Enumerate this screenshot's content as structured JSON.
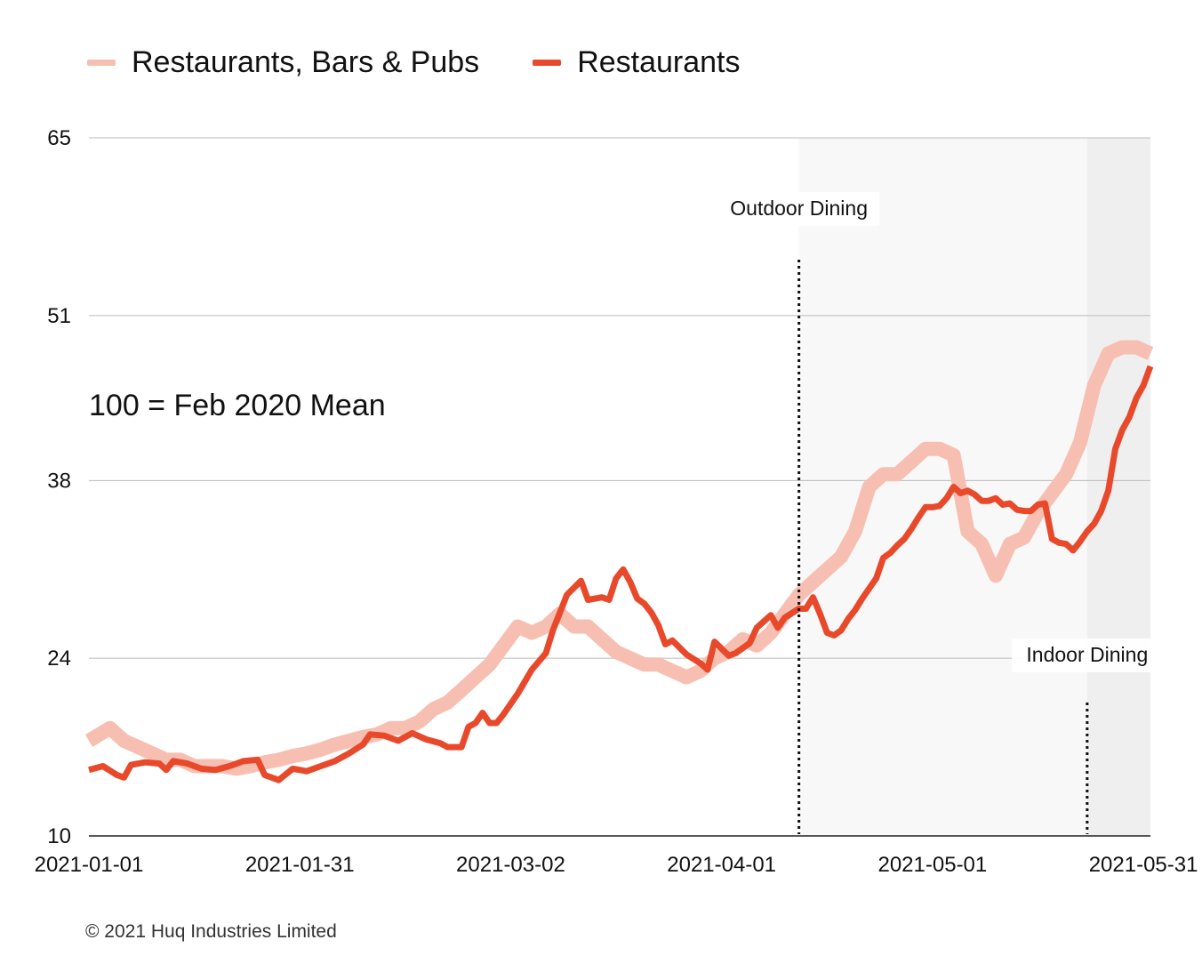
{
  "legend": {
    "items": [
      {
        "label": "Restaurants, Bars & Pubs",
        "color": "#f7bfb1"
      },
      {
        "label": "Restaurants",
        "color": "#e8492a"
      }
    ]
  },
  "annotation": "100 = Feb 2020 Mean",
  "copyright": "© 2021 Huq Industries Limited",
  "chart_data": {
    "type": "line",
    "title": "",
    "xlabel": "",
    "ylabel": "",
    "x_start": "2021-01-01",
    "x_end": "2021-06-01",
    "xticks": [
      "2021-01-01",
      "2021-01-31",
      "2021-03-02",
      "2021-04-01",
      "2021-05-01",
      "2021-05-31"
    ],
    "yticks": [
      "10",
      "24",
      "38",
      "51",
      "65"
    ],
    "ylim": [
      10,
      65
    ],
    "grid": true,
    "legend_position": "top-left",
    "events": [
      {
        "label": "Outdoor Dining",
        "start": "2021-04-12",
        "end": "2021-05-23"
      },
      {
        "label": "Indoor Dining",
        "start": "2021-05-23",
        "end": "2021-06-01"
      }
    ],
    "series": [
      {
        "name": "Restaurants, Bars & Pubs",
        "color": "#f7bfb1",
        "points": [
          [
            "2021-01-01",
            17.5
          ],
          [
            "2021-01-04",
            18.5
          ],
          [
            "2021-01-06",
            17.5
          ],
          [
            "2021-01-08",
            17.0
          ],
          [
            "2021-01-10",
            16.5
          ],
          [
            "2021-01-12",
            16.0
          ],
          [
            "2021-01-14",
            16.0
          ],
          [
            "2021-01-16",
            15.5
          ],
          [
            "2021-01-18",
            15.5
          ],
          [
            "2021-01-20",
            15.5
          ],
          [
            "2021-01-22",
            15.3
          ],
          [
            "2021-01-24",
            15.5
          ],
          [
            "2021-01-26",
            15.8
          ],
          [
            "2021-01-28",
            16.0
          ],
          [
            "2021-01-30",
            16.3
          ],
          [
            "2021-02-01",
            16.5
          ],
          [
            "2021-02-03",
            16.8
          ],
          [
            "2021-02-05",
            17.2
          ],
          [
            "2021-02-07",
            17.5
          ],
          [
            "2021-02-09",
            17.8
          ],
          [
            "2021-02-11",
            18.0
          ],
          [
            "2021-02-13",
            18.5
          ],
          [
            "2021-02-15",
            18.5
          ],
          [
            "2021-02-17",
            19.0
          ],
          [
            "2021-02-19",
            20.0
          ],
          [
            "2021-02-21",
            20.5
          ],
          [
            "2021-02-23",
            21.5
          ],
          [
            "2021-02-25",
            22.5
          ],
          [
            "2021-02-27",
            23.5
          ],
          [
            "2021-03-01",
            25.0
          ],
          [
            "2021-03-03",
            26.5
          ],
          [
            "2021-03-05",
            26.0
          ],
          [
            "2021-03-07",
            26.5
          ],
          [
            "2021-03-09",
            27.5
          ],
          [
            "2021-03-11",
            26.5
          ],
          [
            "2021-03-13",
            26.5
          ],
          [
            "2021-03-15",
            25.5
          ],
          [
            "2021-03-17",
            24.5
          ],
          [
            "2021-03-19",
            24.0
          ],
          [
            "2021-03-21",
            23.5
          ],
          [
            "2021-03-23",
            23.5
          ],
          [
            "2021-03-25",
            23.0
          ],
          [
            "2021-03-27",
            22.5
          ],
          [
            "2021-03-29",
            23.0
          ],
          [
            "2021-03-31",
            24.0
          ],
          [
            "2021-04-02",
            24.5
          ],
          [
            "2021-04-04",
            25.5
          ],
          [
            "2021-04-06",
            25.0
          ],
          [
            "2021-04-08",
            26.0
          ],
          [
            "2021-04-10",
            27.5
          ],
          [
            "2021-04-12",
            29.0
          ],
          [
            "2021-04-14",
            30.0
          ],
          [
            "2021-04-16",
            31.0
          ],
          [
            "2021-04-18",
            32.0
          ],
          [
            "2021-04-20",
            34.0
          ],
          [
            "2021-04-22",
            37.5
          ],
          [
            "2021-04-24",
            38.5
          ],
          [
            "2021-04-26",
            38.5
          ],
          [
            "2021-04-28",
            39.5
          ],
          [
            "2021-04-30",
            40.5
          ],
          [
            "2021-05-02",
            40.5
          ],
          [
            "2021-05-04",
            40.0
          ],
          [
            "2021-05-06",
            34.0
          ],
          [
            "2021-05-08",
            33.0
          ],
          [
            "2021-05-10",
            30.5
          ],
          [
            "2021-05-12",
            33.0
          ],
          [
            "2021-05-14",
            33.5
          ],
          [
            "2021-05-16",
            35.5
          ],
          [
            "2021-05-18",
            37.0
          ],
          [
            "2021-05-20",
            38.5
          ],
          [
            "2021-05-22",
            41.0
          ],
          [
            "2021-05-24",
            45.5
          ],
          [
            "2021-05-26",
            48.0
          ],
          [
            "2021-05-28",
            48.5
          ],
          [
            "2021-05-30",
            48.5
          ],
          [
            "2021-06-01",
            48.0
          ]
        ]
      },
      {
        "name": "Restaurants",
        "color": "#e8492a",
        "points": [
          [
            "2021-01-01",
            15.2
          ],
          [
            "2021-01-03",
            15.5
          ],
          [
            "2021-01-05",
            14.8
          ],
          [
            "2021-01-06",
            14.6
          ],
          [
            "2021-01-07",
            15.6
          ],
          [
            "2021-01-09",
            15.8
          ],
          [
            "2021-01-11",
            15.7
          ],
          [
            "2021-01-12",
            15.2
          ],
          [
            "2021-01-13",
            15.9
          ],
          [
            "2021-01-15",
            15.7
          ],
          [
            "2021-01-17",
            15.3
          ],
          [
            "2021-01-19",
            15.2
          ],
          [
            "2021-01-21",
            15.5
          ],
          [
            "2021-01-23",
            15.9
          ],
          [
            "2021-01-25",
            16.0
          ],
          [
            "2021-01-26",
            14.8
          ],
          [
            "2021-01-28",
            14.4
          ],
          [
            "2021-01-30",
            15.3
          ],
          [
            "2021-02-01",
            15.1
          ],
          [
            "2021-02-03",
            15.5
          ],
          [
            "2021-02-05",
            15.9
          ],
          [
            "2021-02-07",
            16.5
          ],
          [
            "2021-02-09",
            17.2
          ],
          [
            "2021-02-10",
            18.0
          ],
          [
            "2021-02-12",
            17.9
          ],
          [
            "2021-02-14",
            17.5
          ],
          [
            "2021-02-16",
            18.1
          ],
          [
            "2021-02-18",
            17.6
          ],
          [
            "2021-02-20",
            17.3
          ],
          [
            "2021-02-21",
            17.0
          ],
          [
            "2021-02-23",
            17.0
          ],
          [
            "2021-02-24",
            18.6
          ],
          [
            "2021-02-25",
            18.9
          ],
          [
            "2021-02-26",
            19.7
          ],
          [
            "2021-02-27",
            18.9
          ],
          [
            "2021-02-28",
            18.9
          ],
          [
            "2021-03-01",
            19.6
          ],
          [
            "2021-03-03",
            21.2
          ],
          [
            "2021-03-05",
            23.1
          ],
          [
            "2021-03-07",
            24.4
          ],
          [
            "2021-03-08",
            26.2
          ],
          [
            "2021-03-09",
            27.6
          ],
          [
            "2021-03-10",
            29.0
          ],
          [
            "2021-03-12",
            30.1
          ],
          [
            "2021-03-13",
            28.6
          ],
          [
            "2021-03-15",
            28.8
          ],
          [
            "2021-03-16",
            28.6
          ],
          [
            "2021-03-17",
            30.3
          ],
          [
            "2021-03-18",
            31.0
          ],
          [
            "2021-03-19",
            30.0
          ],
          [
            "2021-03-20",
            28.7
          ],
          [
            "2021-03-21",
            28.3
          ],
          [
            "2021-03-22",
            27.6
          ],
          [
            "2021-03-23",
            26.6
          ],
          [
            "2021-03-24",
            25.1
          ],
          [
            "2021-03-25",
            25.4
          ],
          [
            "2021-03-27",
            24.3
          ],
          [
            "2021-03-29",
            23.6
          ],
          [
            "2021-03-30",
            23.1
          ],
          [
            "2021-03-31",
            25.3
          ],
          [
            "2021-04-02",
            24.2
          ],
          [
            "2021-04-03",
            24.4
          ],
          [
            "2021-04-05",
            25.2
          ],
          [
            "2021-04-06",
            26.4
          ],
          [
            "2021-04-08",
            27.4
          ],
          [
            "2021-04-09",
            26.4
          ],
          [
            "2021-04-10",
            27.2
          ],
          [
            "2021-04-12",
            27.9
          ],
          [
            "2021-04-13",
            27.9
          ],
          [
            "2021-04-14",
            28.8
          ],
          [
            "2021-04-15",
            27.5
          ],
          [
            "2021-04-16",
            26.0
          ],
          [
            "2021-04-17",
            25.8
          ],
          [
            "2021-04-18",
            26.2
          ],
          [
            "2021-04-19",
            27.1
          ],
          [
            "2021-04-20",
            27.8
          ],
          [
            "2021-04-21",
            28.7
          ],
          [
            "2021-04-23",
            30.3
          ],
          [
            "2021-04-24",
            31.9
          ],
          [
            "2021-04-25",
            32.3
          ],
          [
            "2021-04-26",
            32.9
          ],
          [
            "2021-04-27",
            33.4
          ],
          [
            "2021-04-28",
            34.2
          ],
          [
            "2021-04-29",
            35.1
          ],
          [
            "2021-04-30",
            35.9
          ],
          [
            "2021-05-01",
            35.9
          ],
          [
            "2021-05-02",
            36.0
          ],
          [
            "2021-05-03",
            36.6
          ],
          [
            "2021-05-04",
            37.5
          ],
          [
            "2021-05-05",
            37.0
          ],
          [
            "2021-05-06",
            37.2
          ],
          [
            "2021-05-07",
            36.9
          ],
          [
            "2021-05-08",
            36.4
          ],
          [
            "2021-05-09",
            36.4
          ],
          [
            "2021-05-10",
            36.6
          ],
          [
            "2021-05-11",
            36.1
          ],
          [
            "2021-05-12",
            36.2
          ],
          [
            "2021-05-13",
            35.7
          ],
          [
            "2021-05-14",
            35.6
          ],
          [
            "2021-05-15",
            35.6
          ],
          [
            "2021-05-16",
            36.1
          ],
          [
            "2021-05-17",
            36.2
          ],
          [
            "2021-05-18",
            33.4
          ],
          [
            "2021-05-19",
            33.1
          ],
          [
            "2021-05-20",
            33.0
          ],
          [
            "2021-05-21",
            32.5
          ],
          [
            "2021-05-22",
            33.2
          ],
          [
            "2021-05-23",
            34.0
          ],
          [
            "2021-05-24",
            34.6
          ],
          [
            "2021-05-25",
            35.6
          ],
          [
            "2021-05-26",
            37.2
          ],
          [
            "2021-05-27",
            40.5
          ],
          [
            "2021-05-28",
            42.0
          ],
          [
            "2021-05-29",
            43.0
          ],
          [
            "2021-05-30",
            44.5
          ],
          [
            "2021-05-31",
            45.5
          ],
          [
            "2021-06-01",
            47.0
          ]
        ]
      }
    ]
  }
}
